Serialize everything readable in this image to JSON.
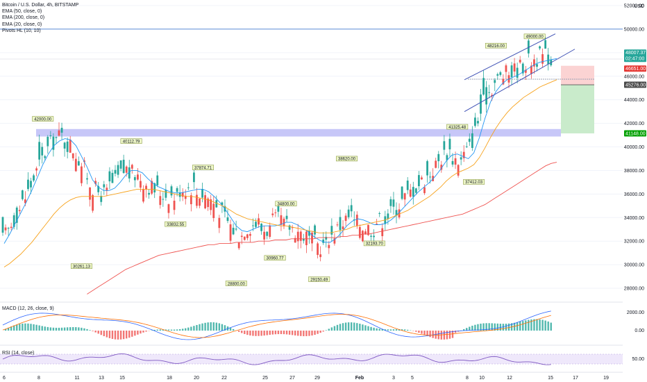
{
  "header": {
    "symbol": "Bitcoin / U.S. Dollar, 4h, BITSTAMP",
    "indicators": [
      "EMA (50, close, 0)",
      "EMA (200, close, 0)",
      "EMA (20, close, 0)",
      "Pivots HL (10, 10)"
    ],
    "currency": "USD"
  },
  "colors": {
    "up": "#26a69a",
    "down": "#ef5350",
    "ema20": "#2196f3",
    "ema50": "#f7a21b",
    "ema200": "#ef5350",
    "zone": "#b4b4f5",
    "wedge": "#3f51b5",
    "macd": "#2962ff",
    "signal": "#ff6d00",
    "rsi": "#7e57c2",
    "stop_box": "#fbd3d3",
    "target_box": "#c9ebcb"
  },
  "chart_data": {
    "type": "candlestick",
    "symbol": "BTCUSD",
    "timeframe": "4h",
    "exchange": "BITSTAMP",
    "x_ticks": [
      "6",
      "8",
      "11",
      "13",
      "15",
      "18",
      "20",
      "22",
      "25",
      "27",
      "29",
      "Feb",
      "3",
      "5",
      "8",
      "10",
      "12",
      "15",
      "17",
      "19"
    ],
    "price_axis": {
      "ylim": [
        27000,
        52000
      ],
      "ticks": [
        "52000.00",
        "50000.00",
        "48000.00",
        "46000.00",
        "44000.00",
        "42000.00",
        "40000.00",
        "38000.00",
        "36000.00",
        "34000.00",
        "32000.00",
        "30000.00",
        "28000.00"
      ]
    },
    "price_badges": [
      {
        "label": "48007.37",
        "sub": "02:47:00",
        "kind": "last"
      },
      {
        "label": "46651.00",
        "kind": "stop"
      },
      {
        "label": "45276.00",
        "kind": "entry"
      },
      {
        "label": "41148.00",
        "kind": "target"
      }
    ],
    "pivot_labels": [
      {
        "text": "42000.00",
        "price": 42000,
        "slot": 7,
        "pos": "above"
      },
      {
        "text": "30261.13",
        "price": 30261.13,
        "slot": 14,
        "pos": "below"
      },
      {
        "text": "40112.79",
        "price": 40112.79,
        "slot": 23,
        "pos": "above"
      },
      {
        "text": "33832.55",
        "price": 33832.55,
        "slot": 31,
        "pos": "below"
      },
      {
        "text": "37874.71",
        "price": 37874.71,
        "slot": 36,
        "pos": "above"
      },
      {
        "text": "28800.00",
        "price": 28800,
        "slot": 42,
        "pos": "below"
      },
      {
        "text": "30960.77",
        "price": 30960.77,
        "slot": 49,
        "pos": "below"
      },
      {
        "text": "34800.00",
        "price": 34800,
        "slot": 51,
        "pos": "above"
      },
      {
        "text": "29150.49",
        "price": 29150.49,
        "slot": 57,
        "pos": "below"
      },
      {
        "text": "38620.00",
        "price": 38620,
        "slot": 62,
        "pos": "above"
      },
      {
        "text": "32193.70",
        "price": 32193.7,
        "slot": 67,
        "pos": "below"
      },
      {
        "text": "41325.48",
        "price": 41325.48,
        "slot": 82,
        "pos": "above"
      },
      {
        "text": "37412.03",
        "price": 37412.03,
        "slot": 85,
        "pos": "below"
      },
      {
        "text": "48216.00",
        "price": 48216,
        "slot": 89,
        "pos": "above"
      },
      {
        "text": "49000.00",
        "price": 49000,
        "slot": 96,
        "pos": "above"
      }
    ],
    "levels": {
      "resistance_line": 50000,
      "support_zone": [
        41000,
        41400
      ],
      "position": {
        "stop": 46651,
        "entry": 45276,
        "target": 41148
      }
    },
    "series": [
      {
        "name": "EMA (20, close, 0)",
        "values": [
          31800,
          32600,
          33500,
          34400,
          35300,
          36300,
          37400,
          38500,
          39400,
          40100,
          40500,
          40700,
          40600,
          40100,
          39200,
          38300,
          37200,
          36600,
          36300,
          36300,
          36500,
          37000,
          37600,
          38000,
          38000,
          37800,
          37300,
          36900,
          36600,
          36400,
          36200,
          36100,
          36100,
          36200,
          36300,
          36400,
          36400,
          36200,
          35800,
          35300,
          34700,
          34000,
          33300,
          32900,
          32800,
          33000,
          33200,
          33300,
          33300,
          33300,
          33400,
          33600,
          33600,
          33400,
          33100,
          32800,
          32400,
          32100,
          31900,
          31900,
          32200,
          32700,
          33300,
          33700,
          33900,
          33800,
          33600,
          33400,
          33400,
          33500,
          33800,
          34200,
          34700,
          35200,
          35700,
          36200,
          36600,
          37000,
          37500,
          38100,
          38800,
          39300,
          39400,
          39200,
          39000,
          39500,
          40800,
          42400,
          43800,
          44700,
          45300,
          45700,
          45900,
          46100,
          46400,
          46700,
          47000,
          47200,
          47300,
          47400,
          47500
        ]
      },
      {
        "name": "EMA (50, close, 0)",
        "values": [
          29800,
          30100,
          30500,
          30900,
          31400,
          31900,
          32500,
          33100,
          33700,
          34300,
          34800,
          35200,
          35500,
          35700,
          35800,
          35800,
          35800,
          35800,
          35800,
          35900,
          36000,
          36100,
          36200,
          36300,
          36400,
          36400,
          36400,
          36400,
          36300,
          36200,
          36100,
          36000,
          35900,
          35800,
          35800,
          35700,
          35600,
          35500,
          35300,
          35100,
          34900,
          34600,
          34300,
          34100,
          33900,
          33800,
          33700,
          33600,
          33500,
          33400,
          33300,
          33300,
          33200,
          33100,
          33000,
          32900,
          32800,
          32700,
          32700,
          32700,
          32800,
          32900,
          33000,
          33200,
          33300,
          33400,
          33500,
          33600,
          33700,
          33800,
          34000,
          34200,
          34400,
          34600,
          34900,
          35200,
          35500,
          35800,
          36200,
          36600,
          37100,
          37500,
          37800,
          38000,
          38200,
          38500,
          39100,
          39900,
          40800,
          41600,
          42300,
          42900,
          43400,
          43800,
          44200,
          44500,
          44800,
          45100,
          45300,
          45500,
          45700
        ]
      },
      {
        "name": "EMA (200, close, 0)",
        "values": [
          null,
          null,
          null,
          null,
          null,
          null,
          null,
          null,
          null,
          null,
          null,
          null,
          null,
          null,
          null,
          27500,
          27800,
          28100,
          28400,
          28700,
          29000,
          29300,
          29600,
          29800,
          30000,
          30200,
          30400,
          30600,
          30800,
          30900,
          31000,
          31100,
          31200,
          31300,
          31400,
          31500,
          31600,
          31700,
          31700,
          31800,
          31800,
          31800,
          31900,
          31900,
          31900,
          31900,
          32000,
          32000,
          32000,
          32100,
          32100,
          32100,
          32200,
          32200,
          32200,
          32200,
          32200,
          32300,
          32300,
          32300,
          32300,
          32400,
          32400,
          32500,
          32500,
          32600,
          32600,
          32700,
          32800,
          32900,
          33000,
          33100,
          33200,
          33300,
          33400,
          33500,
          33600,
          33700,
          33800,
          33900,
          34000,
          34100,
          34200,
          34300,
          34500,
          34700,
          34900,
          35100,
          35400,
          35700,
          36000,
          36300,
          36600,
          36900,
          37200,
          37500,
          37800,
          38100,
          38400,
          38600,
          38700
        ]
      }
    ],
    "macd_panel": {
      "label": "MACD (12, 26, close, 9)",
      "ticks": [
        "2000.00",
        "0.00"
      ]
    },
    "rsi_panel": {
      "label": "RSI (14, close)",
      "ticks": [
        "50.00"
      ]
    }
  }
}
